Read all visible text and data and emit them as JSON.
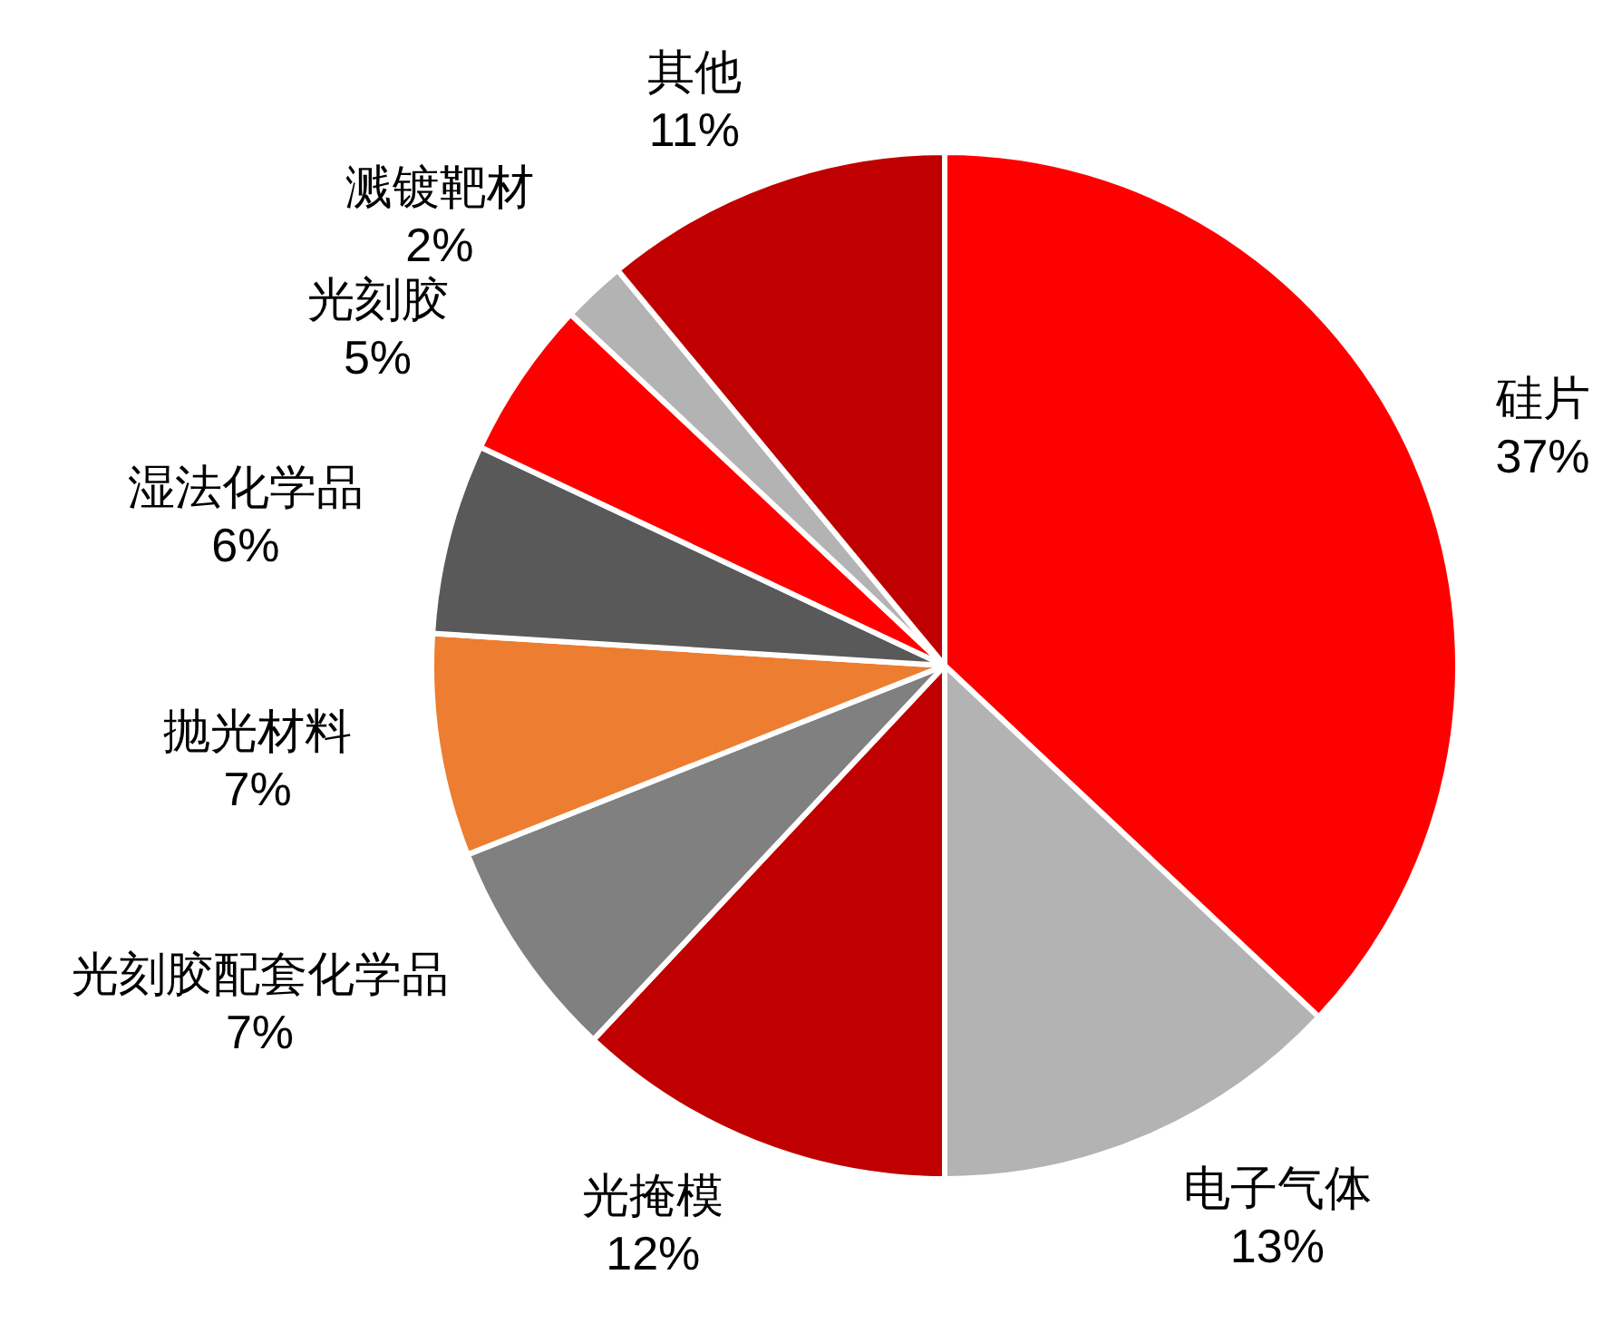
{
  "chart_data": {
    "type": "pie",
    "categories": [
      "硅片",
      "电子气体",
      "光掩模",
      "光刻胶配套化学品",
      "抛光材料",
      "湿法化学品",
      "光刻胶",
      "溅镀靶材",
      "其他"
    ],
    "values": [
      37,
      13,
      12,
      7,
      7,
      6,
      5,
      2,
      11
    ],
    "colors": [
      "#ff0000",
      "#b3b3b3",
      "#c00000",
      "#808080",
      "#ed7d31",
      "#595959",
      "#ff0000",
      "#b3b3b3",
      "#c00000"
    ],
    "value_labels": [
      "37%",
      "13%",
      "12%",
      "7%",
      "7%",
      "6%",
      "5%",
      "2%",
      "11%"
    ]
  }
}
